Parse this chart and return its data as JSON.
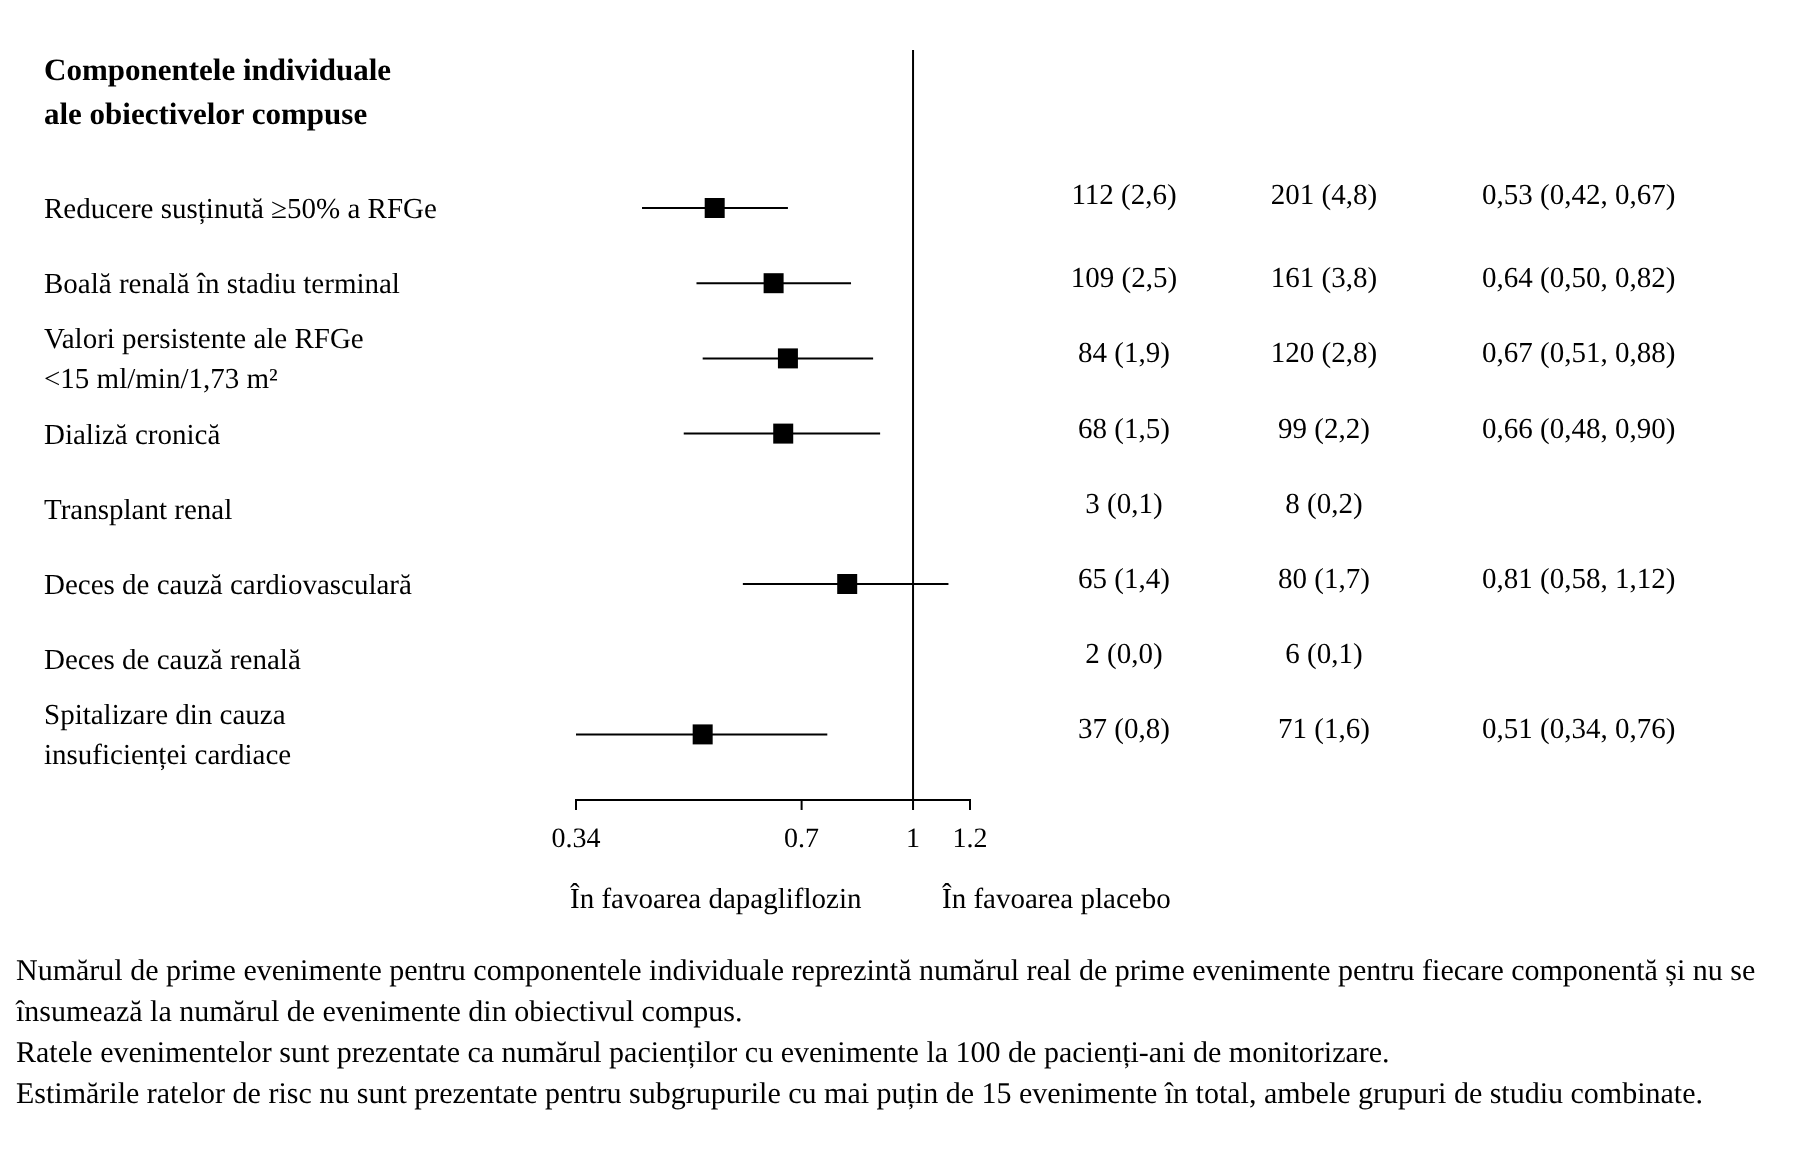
{
  "chart_data": {
    "type": "scatter",
    "orientation": "horizontal",
    "title": "Componentele individuale\nale obiectivelor compuse",
    "categories": [
      "Reducere susținută ≥50% a RFGe",
      "Boală renală în stadiu terminal",
      "Valori persistente ale RFGe\n<15 ml/min/1,73 m²",
      "Dializă cronică",
      "Transplant renal",
      "Deces de cauză cardiovasculară",
      "Deces de cauză renală",
      "Spitalizare din cauza\ninsuficienței cardiace"
    ],
    "values": [
      0.53,
      0.64,
      0.67,
      0.66,
      null,
      0.81,
      null,
      0.51
    ],
    "errors": [
      [
        0.42,
        0.67
      ],
      [
        0.5,
        0.82
      ],
      [
        0.51,
        0.88
      ],
      [
        0.48,
        0.9
      ],
      null,
      [
        0.58,
        1.12
      ],
      null,
      [
        0.34,
        0.76
      ]
    ],
    "value_labels": [
      "0,53 (0,42, 0,67)",
      "0,64 (0,50, 0,82)",
      "0,67 (0,51, 0,88)",
      "0,66 (0,48, 0,90)",
      null,
      "0,81 (0,58, 1,12)",
      null,
      "0,51 (0,34, 0,76)"
    ],
    "color": "#000000",
    "marker": "square",
    "log": "x",
    "xlim": [
      0.34,
      1.2
    ],
    "xticks": [
      0.34,
      0.7,
      1,
      1.2
    ],
    "ref_lines": [
      {
        "axis": "x",
        "value": 1
      }
    ],
    "annotations": [
      "112 (2,6)",
      "201 (4,8)",
      "109 (2,5)",
      "161 (3,8)",
      "84 (1,9)",
      "120 (2,8)",
      "68 (1,5)",
      "99 (2,2)",
      "3 (0,1)",
      "8 (0,2)",
      "65 (1,4)",
      "80 (1,7)",
      "2 (0,0)",
      "6 (0,1)",
      "37 (0,8)",
      "71 (1,6)",
      "În favoarea dapagliflozin",
      "În favoarea placebo",
      "Numărul de prime evenimente pentru componentele individuale reprezintă numărul real de prime evenimente pentru fiecare componentă și nu se însumează la numărul de evenimente din obiectivul compus.",
      "Ratele evenimentelor sunt prezentate ca numărul pacienților cu evenimente la 100 de pacienți-ani de monitorizare.",
      "Estimările ratelor de risc nu sunt prezentate pentru subgrupurile cu mai puțin de 15 evenimente în total, ambele grupuri de studiu combinate."
    ]
  }
}
